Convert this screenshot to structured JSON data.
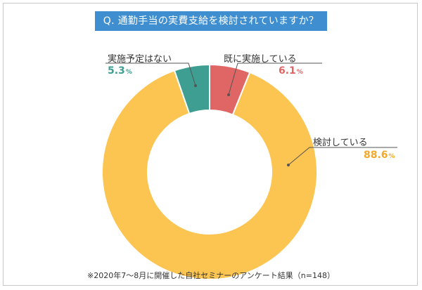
{
  "title": "Q. 通勤手当の実費支給を検討されていますか？",
  "chart_data": {
    "type": "pie",
    "donut": true,
    "title": "Q. 通勤手当の実費支給を検討されていますか？",
    "categories": [
      "既に実施している",
      "検討している",
      "実施予定はない"
    ],
    "values": [
      6.1,
      88.6,
      5.3
    ],
    "unit": "%",
    "colors": [
      "#e06565",
      "#fcc450",
      "#3e9e91"
    ],
    "legend": "none",
    "labels": [
      {
        "name": "既に実施している",
        "value": "6.1",
        "unit": "%"
      },
      {
        "name": "検討している",
        "value": "88.6",
        "unit": "%"
      },
      {
        "name": "実施予定はない",
        "value": "5.3",
        "unit": "%"
      }
    ]
  },
  "footnote": "※2020年7〜8月に開催した自社セミナーのアンケート結果（n=148）"
}
